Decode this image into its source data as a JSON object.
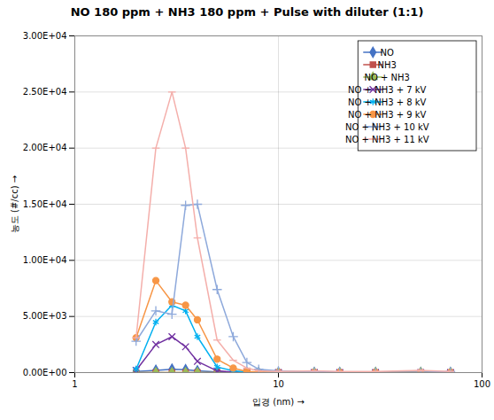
{
  "chart_data": {
    "type": "line",
    "title": "NO 180 ppm + NH3 180 ppm + Pulse with diluter (1:1)",
    "xlabel": "입경 (nm)",
    "ylabel": "농도 (#/cc)",
    "log": "x",
    "grid": true,
    "legend": "upper right",
    "xlim": [
      1,
      100
    ],
    "xticks": [
      1,
      10,
      100
    ],
    "ylim": [
      0,
      30000
    ],
    "yticks": [
      {
        "value": 0,
        "label": "0.00E+00"
      },
      {
        "value": 5000,
        "label": "5.00E+03"
      },
      {
        "value": 10000,
        "label": "1.00E+04"
      },
      {
        "value": 15000,
        "label": "1.50E+04"
      },
      {
        "value": 20000,
        "label": "2.00E+04"
      },
      {
        "value": 25000,
        "label": "2.50E+04"
      },
      {
        "value": 30000,
        "label": "3.00E+04"
      }
    ],
    "x": [
      2.0,
      2.5,
      3.0,
      3.5,
      4.0,
      5.0,
      6.0,
      7.0,
      8.0,
      10.0,
      15.0,
      20.0,
      30.0,
      50.0,
      70.0
    ],
    "series": [
      {
        "name": "NO",
        "color": "#4472C4",
        "marker": "diamond",
        "values": [
          100,
          200,
          300,
          250,
          150,
          50,
          20,
          0,
          0,
          0,
          0,
          0,
          0,
          0,
          0
        ]
      },
      {
        "name": "NH3",
        "color": "#C0504D",
        "marker": "square",
        "values": [
          0,
          0,
          0,
          0,
          0,
          0,
          0,
          0,
          0,
          0,
          0,
          0,
          0,
          0,
          0
        ]
      },
      {
        "name": "NO + NH3",
        "color": "#9BBB59",
        "marker": "triangle",
        "values": [
          0,
          0,
          0,
          0,
          0,
          0,
          0,
          0,
          0,
          0,
          0,
          0,
          0,
          0,
          0
        ]
      },
      {
        "name": "NO + NH3 + 7 kV",
        "color": "#7030A0",
        "marker": "x",
        "values": [
          200,
          2500,
          3200,
          2300,
          1000,
          150,
          50,
          0,
          0,
          0,
          0,
          0,
          0,
          0,
          0
        ]
      },
      {
        "name": "NO + NH3 + 8 kV",
        "color": "#00B0F0",
        "marker": "asterisk",
        "values": [
          300,
          4500,
          6000,
          5500,
          3200,
          500,
          150,
          50,
          0,
          0,
          0,
          0,
          0,
          0,
          0
        ]
      },
      {
        "name": "NO + NH3 + 9 kV",
        "color": "#F79646",
        "marker": "circle",
        "values": [
          3100,
          8200,
          6300,
          6000,
          4700,
          1200,
          400,
          100,
          50,
          0,
          0,
          0,
          0,
          0,
          0
        ]
      },
      {
        "name": "NO + NH3 + 10 kV",
        "color": "#8EA9DB",
        "marker": "plus",
        "values": [
          2800,
          5500,
          5200,
          14900,
          15000,
          7400,
          3200,
          900,
          300,
          150,
          100,
          50,
          0,
          0,
          100
        ]
      },
      {
        "name": "NO + NH3 + 11 kV",
        "color": "#F4AFAB",
        "marker": "hline",
        "values": [
          3100,
          20000,
          25000,
          20000,
          12000,
          2900,
          1100,
          400,
          150,
          100,
          150,
          100,
          100,
          200,
          100
        ]
      }
    ]
  }
}
